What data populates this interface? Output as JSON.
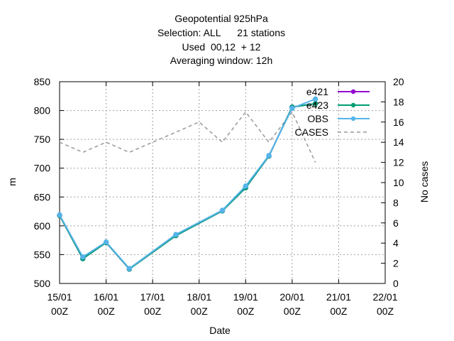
{
  "chart_data": {
    "type": "line",
    "title": [
      "Geopotential 925hPa",
      "Selection: ALL      21 stations",
      "Used  00,12  + 12",
      "Averaging window: 12h"
    ],
    "xlabel": "Date",
    "ylabel": "m",
    "y2label": "No cases",
    "x_ticks": [
      {
        "x": 0,
        "line1": "15/01",
        "line2": "00Z"
      },
      {
        "x": 1,
        "line1": "16/01",
        "line2": "00Z"
      },
      {
        "x": 2,
        "line1": "17/01",
        "line2": "00Z"
      },
      {
        "x": 3,
        "line1": "18/01",
        "line2": "00Z"
      },
      {
        "x": 4,
        "line1": "19/01",
        "line2": "00Z"
      },
      {
        "x": 5,
        "line1": "20/01",
        "line2": "00Z"
      },
      {
        "x": 6,
        "line1": "21/01",
        "line2": "00Z"
      },
      {
        "x": 7,
        "line1": "22/01",
        "line2": "00Z"
      }
    ],
    "xlim": [
      0,
      7
    ],
    "ylim": [
      500,
      850
    ],
    "yticks": [
      500,
      550,
      600,
      650,
      700,
      750,
      800,
      850
    ],
    "y2lim": [
      0,
      20
    ],
    "y2ticks": [
      0,
      2,
      4,
      6,
      8,
      10,
      12,
      14,
      16,
      18,
      20
    ],
    "grid": true,
    "legend_position": "top-right",
    "series": [
      {
        "name": "e421",
        "axis": "y",
        "color": "#9400d3",
        "dash": false,
        "marker": true,
        "points": [
          [
            0,
            618
          ],
          [
            0.5,
            543
          ],
          [
            1,
            571
          ],
          [
            1.5,
            525
          ],
          [
            2.5,
            583
          ],
          [
            3.5,
            626
          ],
          [
            4,
            666
          ],
          [
            4.5,
            721
          ],
          [
            5,
            806
          ],
          [
            5.5,
            812
          ]
        ]
      },
      {
        "name": "e423",
        "axis": "y",
        "color": "#009e73",
        "dash": false,
        "marker": true,
        "points": [
          [
            0,
            618
          ],
          [
            0.5,
            543
          ],
          [
            1,
            571
          ],
          [
            1.5,
            525
          ],
          [
            2.5,
            583
          ],
          [
            3.5,
            626
          ],
          [
            4,
            666
          ],
          [
            4.5,
            721
          ],
          [
            5,
            806
          ],
          [
            5.5,
            812
          ]
        ]
      },
      {
        "name": "OBS",
        "axis": "y",
        "color": "#56b4e9",
        "dash": false,
        "marker": true,
        "points": [
          [
            0,
            619
          ],
          [
            0.5,
            546
          ],
          [
            1,
            572
          ],
          [
            1.5,
            526
          ],
          [
            2.5,
            585
          ],
          [
            3.5,
            627
          ],
          [
            4,
            669
          ],
          [
            4.5,
            722
          ],
          [
            5,
            804
          ],
          [
            5.5,
            820
          ]
        ]
      },
      {
        "name": "CASES",
        "axis": "y2",
        "color": "#999999",
        "dash": true,
        "marker": false,
        "points": [
          [
            0,
            14
          ],
          [
            0.5,
            13
          ],
          [
            1,
            14
          ],
          [
            1.5,
            13
          ],
          [
            2.5,
            15
          ],
          [
            3,
            16
          ],
          [
            3.5,
            14
          ],
          [
            4,
            17
          ],
          [
            4.5,
            14
          ],
          [
            5,
            17
          ],
          [
            5.5,
            12
          ]
        ]
      }
    ]
  }
}
